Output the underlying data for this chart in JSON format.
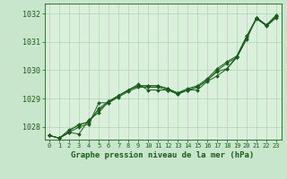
{
  "background_color": "#c8e6cc",
  "plot_bg_color": "#daf0dd",
  "grid_color": "#b0d4b4",
  "line_color": "#1a5c1a",
  "marker_color": "#1a5c1a",
  "title": "Graphe pression niveau de la mer (hPa)",
  "ylim": [
    1027.55,
    1032.35
  ],
  "xlim": [
    -0.5,
    23.5
  ],
  "yticks": [
    1028,
    1029,
    1030,
    1031,
    1032
  ],
  "xticks": [
    0,
    1,
    2,
    3,
    4,
    5,
    6,
    7,
    8,
    9,
    10,
    11,
    12,
    13,
    14,
    15,
    16,
    17,
    18,
    19,
    20,
    21,
    22,
    23
  ],
  "series": [
    {
      "x": [
        0,
        1,
        2,
        3,
        4,
        5,
        6,
        7,
        8,
        9,
        10,
        11,
        12,
        13,
        14,
        15,
        16,
        17,
        18,
        19,
        20,
        21,
        22,
        23
      ],
      "y": [
        1027.7,
        1027.6,
        1027.8,
        1027.75,
        1028.25,
        1028.5,
        1028.9,
        1029.1,
        1029.3,
        1029.45,
        1029.45,
        1029.45,
        1029.35,
        1029.15,
        1029.3,
        1029.4,
        1029.65,
        1029.95,
        1030.05,
        1030.45,
        1031.1,
        1031.85,
        1031.55,
        1031.85
      ]
    },
    {
      "x": [
        0,
        1,
        2,
        3,
        4,
        5,
        6,
        7,
        8,
        9,
        10,
        11,
        12,
        13,
        14,
        15,
        16,
        17,
        18,
        19,
        20,
        21,
        22,
        23
      ],
      "y": [
        1027.7,
        1027.6,
        1027.9,
        1028.05,
        1028.2,
        1028.6,
        1028.85,
        1029.05,
        1029.25,
        1029.4,
        1029.4,
        1029.4,
        1029.3,
        1029.15,
        1029.3,
        1029.4,
        1029.65,
        1029.98,
        1030.25,
        1030.45,
        1031.15,
        1031.85,
        1031.58,
        1031.9
      ]
    },
    {
      "x": [
        0,
        1,
        2,
        3,
        4,
        5,
        6,
        7,
        8,
        9,
        10,
        11,
        12,
        13,
        14,
        15,
        16,
        17,
        18,
        19,
        20,
        21,
        22,
        23
      ],
      "y": [
        1027.7,
        1027.6,
        1027.85,
        1028.1,
        1028.15,
        1028.65,
        1028.9,
        1029.1,
        1029.3,
        1029.45,
        1029.45,
        1029.45,
        1029.35,
        1029.2,
        1029.35,
        1029.45,
        1029.7,
        1030.05,
        1030.3,
        1030.5,
        1031.2,
        1031.85,
        1031.6,
        1031.95
      ]
    },
    {
      "x": [
        0,
        1,
        2,
        3,
        4,
        5,
        6,
        7,
        8,
        9,
        10,
        11,
        12,
        13,
        14,
        15,
        16,
        17,
        18,
        19,
        20,
        21,
        22,
        23
      ],
      "y": [
        1027.7,
        1027.6,
        1027.8,
        1028.0,
        1028.1,
        1028.85,
        1028.85,
        1029.1,
        1029.3,
        1029.5,
        1029.3,
        1029.3,
        1029.3,
        1029.2,
        1029.3,
        1029.3,
        1029.6,
        1029.8,
        1030.05,
        1030.5,
        1031.2,
        1031.8,
        1031.58,
        1031.9
      ]
    }
  ]
}
